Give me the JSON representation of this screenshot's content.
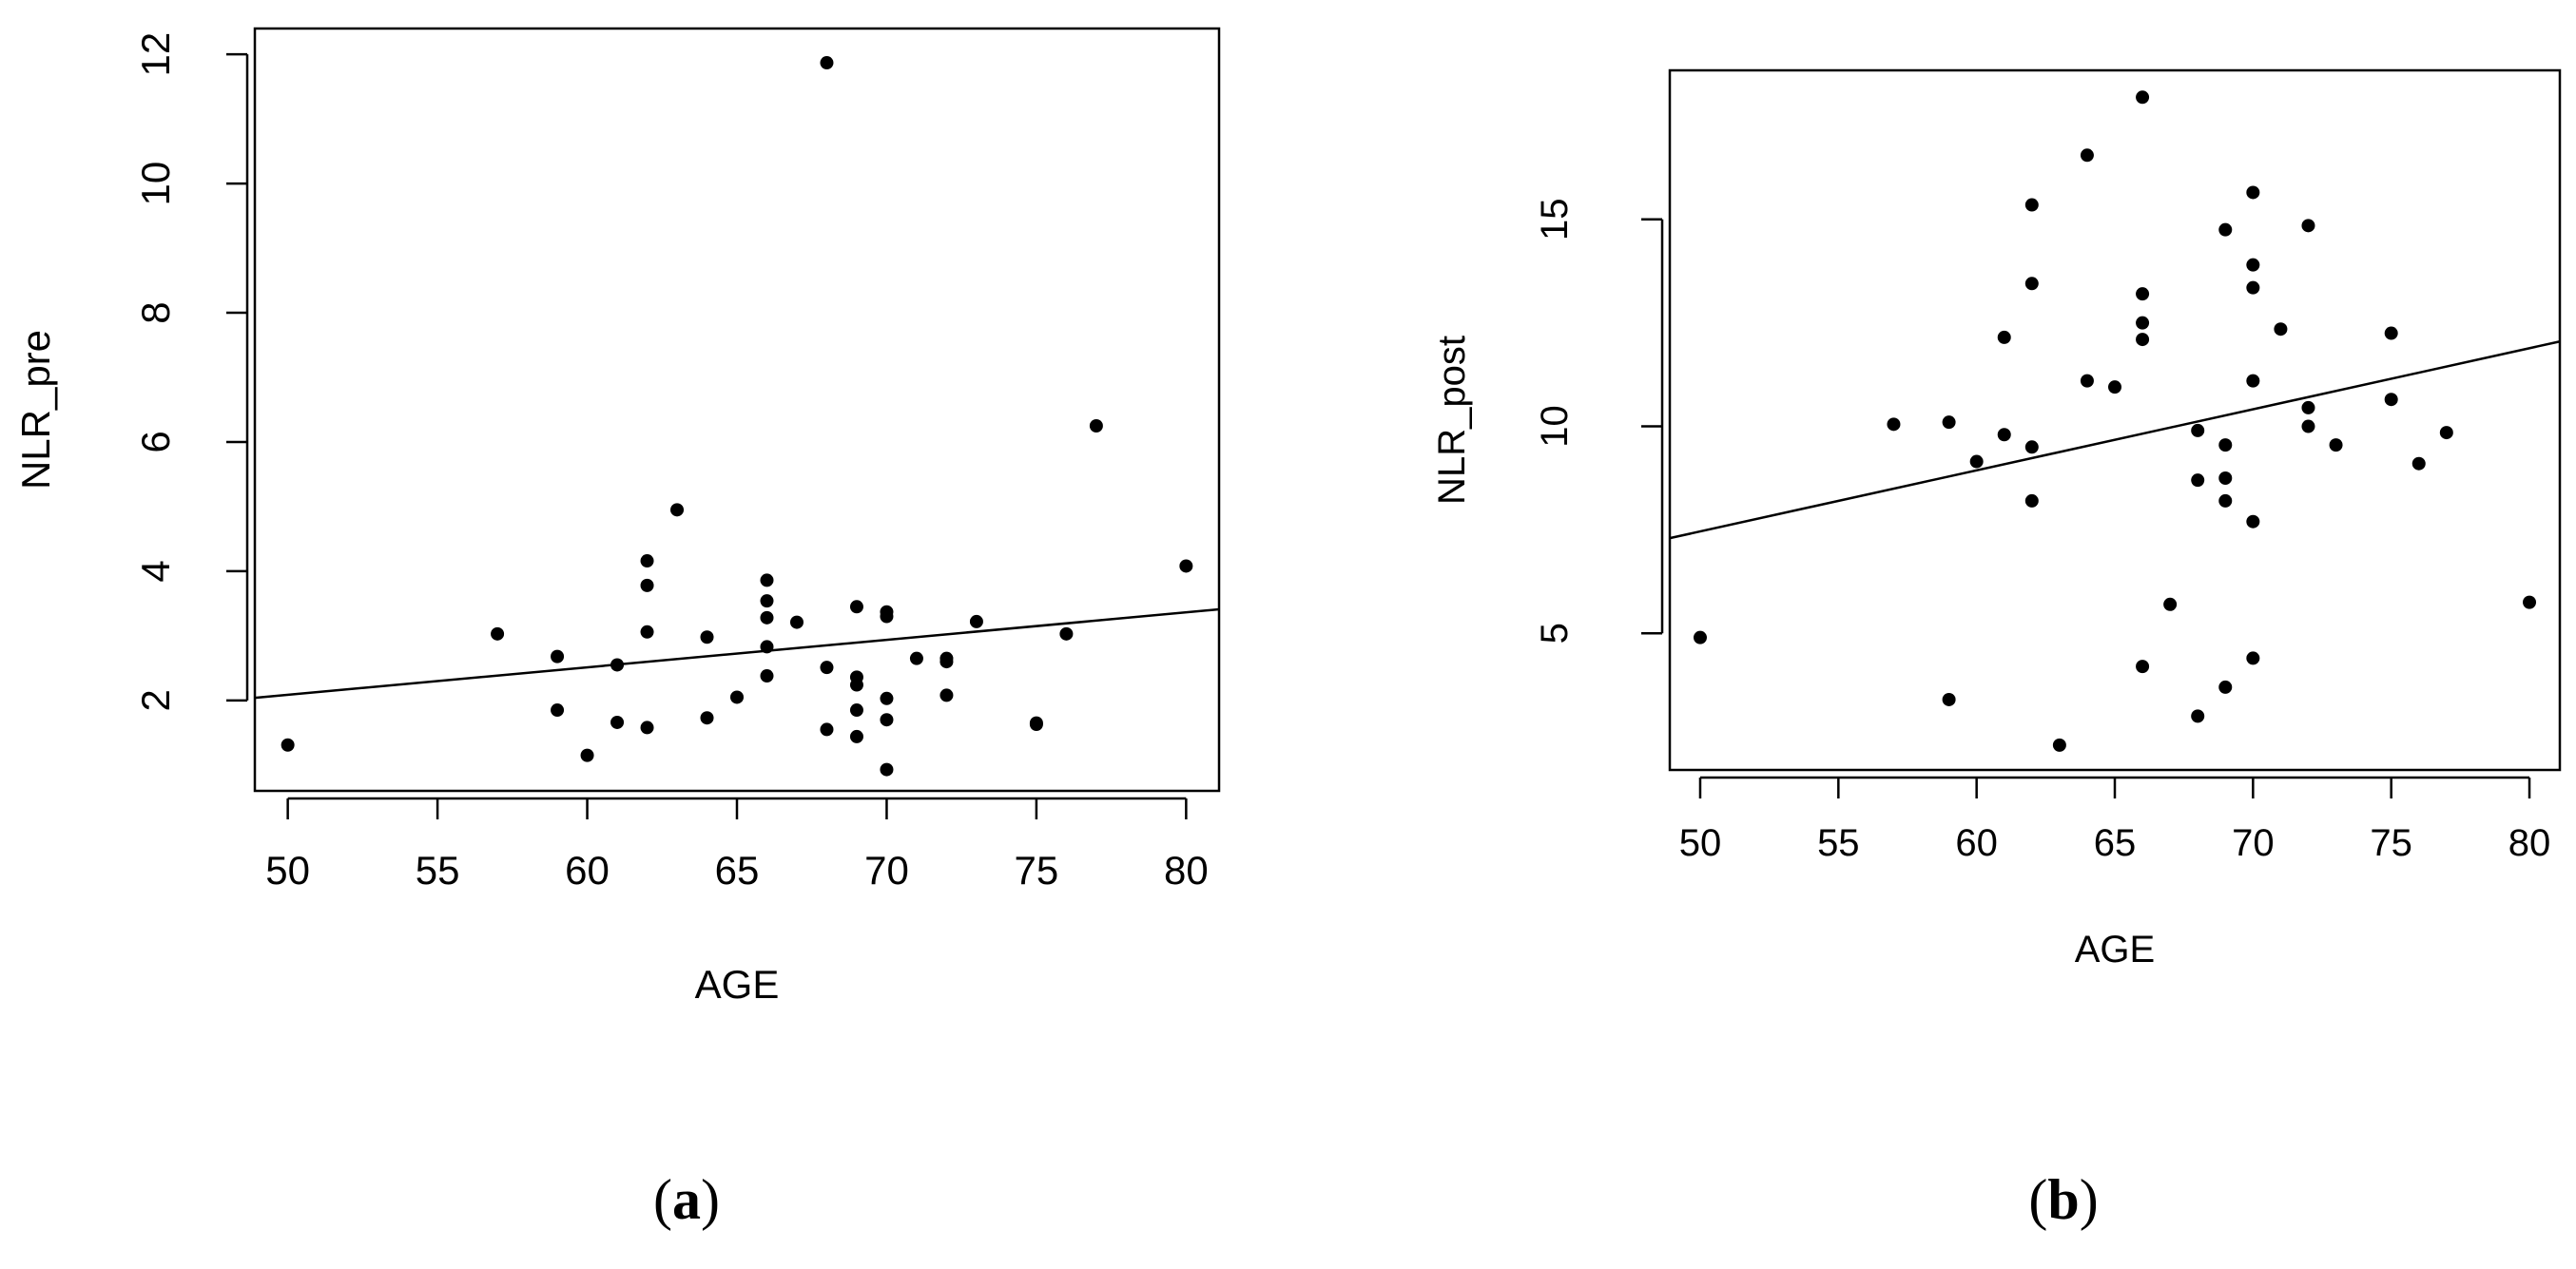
{
  "chart_data": [
    {
      "type": "scatter",
      "panel_label": "(a)",
      "panel_letter": "a",
      "xlabel": "AGE",
      "ylabel": "NLR_pre",
      "xlim": [
        48.9,
        81.1
      ],
      "ylim": [
        0.6,
        12.4
      ],
      "xticks": [
        50,
        55,
        60,
        65,
        70,
        75,
        80
      ],
      "yticks": [
        2,
        4,
        6,
        8,
        10,
        12
      ],
      "regression_line": {
        "x": [
          48.9,
          81.1
        ],
        "y": [
          2.04,
          3.41
        ]
      },
      "x": [
        50,
        57,
        59,
        59,
        60,
        61,
        61,
        62,
        62,
        62,
        62,
        63,
        64,
        64,
        65,
        66,
        66,
        66,
        66,
        66,
        67,
        68,
        68,
        68,
        69,
        69,
        69,
        69,
        69,
        70,
        70,
        70,
        70,
        70,
        71,
        72,
        72,
        72,
        73,
        75,
        75,
        76,
        77,
        80
      ],
      "y": [
        1.31,
        3.03,
        2.68,
        1.85,
        1.15,
        2.55,
        1.66,
        4.16,
        3.78,
        3.06,
        1.58,
        4.95,
        2.98,
        1.73,
        2.05,
        3.86,
        3.54,
        3.28,
        2.83,
        2.38,
        3.21,
        11.87,
        2.51,
        1.55,
        3.45,
        2.36,
        2.24,
        1.85,
        1.44,
        3.37,
        3.3,
        2.03,
        1.7,
        0.93,
        2.65,
        2.65,
        2.6,
        2.08,
        3.22,
        1.65,
        1.63,
        3.03,
        6.25,
        4.08
      ]
    },
    {
      "type": "scatter",
      "panel_label": "(b)",
      "panel_letter": "b",
      "xlabel": "AGE",
      "ylabel": "NLR_post",
      "xlim": [
        48.9,
        81.1
      ],
      "ylim": [
        1.7,
        18.6
      ],
      "xticks": [
        50,
        55,
        60,
        65,
        70,
        75,
        80
      ],
      "yticks": [
        5,
        10,
        15
      ],
      "regression_line": {
        "x": [
          48.9,
          81.1
        ],
        "y": [
          7.3,
          12.05
        ]
      },
      "x": [
        50,
        57,
        59,
        59,
        60,
        61,
        61,
        62,
        62,
        62,
        62,
        63,
        64,
        64,
        65,
        66,
        66,
        66,
        66,
        66,
        67,
        68,
        68,
        68,
        69,
        69,
        69,
        69,
        69,
        70,
        70,
        70,
        70,
        70,
        70,
        71,
        72,
        72,
        72,
        73,
        75,
        75,
        76,
        77,
        80
      ],
      "y": [
        4.9,
        10.05,
        10.1,
        3.4,
        9.15,
        12.15,
        9.8,
        15.35,
        13.45,
        9.5,
        8.2,
        2.3,
        16.55,
        11.1,
        10.95,
        17.95,
        13.2,
        12.5,
        12.1,
        4.2,
        5.7,
        9.9,
        8.7,
        3.0,
        14.75,
        9.55,
        8.75,
        8.2,
        3.7,
        15.65,
        13.9,
        13.35,
        11.1,
        7.7,
        4.4,
        12.35,
        14.85,
        10.45,
        10.0,
        9.55,
        12.25,
        10.65,
        9.1,
        9.85,
        5.75
      ]
    }
  ]
}
